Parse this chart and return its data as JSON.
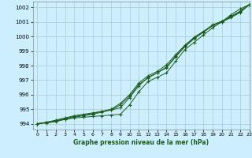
{
  "title": "Graphe pression niveau de la mer (hPa)",
  "bg_color": "#cceeff",
  "grid_color": "#aacccc",
  "line_color": "#1a5c1a",
  "xlim": [
    -0.5,
    23
  ],
  "ylim": [
    993.6,
    1002.4
  ],
  "yticks": [
    994,
    995,
    996,
    997,
    998,
    999,
    1000,
    1001,
    1002
  ],
  "xticks": [
    0,
    1,
    2,
    3,
    4,
    5,
    6,
    7,
    8,
    9,
    10,
    11,
    12,
    13,
    14,
    15,
    16,
    17,
    18,
    19,
    20,
    21,
    22,
    23
  ],
  "series": [
    [
      994.0,
      994.1,
      994.2,
      994.3,
      994.4,
      994.45,
      994.5,
      994.55,
      994.6,
      994.65,
      995.3,
      996.2,
      996.9,
      997.2,
      997.5,
      998.3,
      999.1,
      999.6,
      1000.1,
      1000.6,
      1001.0,
      1001.5,
      1001.9,
      1002.2
    ],
    [
      994.0,
      994.1,
      994.25,
      994.4,
      994.55,
      994.65,
      994.75,
      994.85,
      994.95,
      995.1,
      995.8,
      996.6,
      997.2,
      997.5,
      997.85,
      998.6,
      999.3,
      999.85,
      1000.3,
      1000.75,
      1001.05,
      1001.4,
      1001.75,
      1002.2
    ],
    [
      994.0,
      994.1,
      994.2,
      994.35,
      994.5,
      994.6,
      994.7,
      994.85,
      995.0,
      995.4,
      996.0,
      996.8,
      997.3,
      997.6,
      998.05,
      998.75,
      999.4,
      999.95,
      1000.35,
      1000.8,
      1001.05,
      1001.35,
      1001.7,
      1002.2
    ],
    [
      994.0,
      994.05,
      994.15,
      994.3,
      994.45,
      994.55,
      994.65,
      994.8,
      994.95,
      995.3,
      995.9,
      996.7,
      997.15,
      997.5,
      997.9,
      998.65,
      999.35,
      999.9,
      1000.3,
      1000.75,
      1001.0,
      1001.3,
      1001.65,
      1002.2
    ]
  ]
}
